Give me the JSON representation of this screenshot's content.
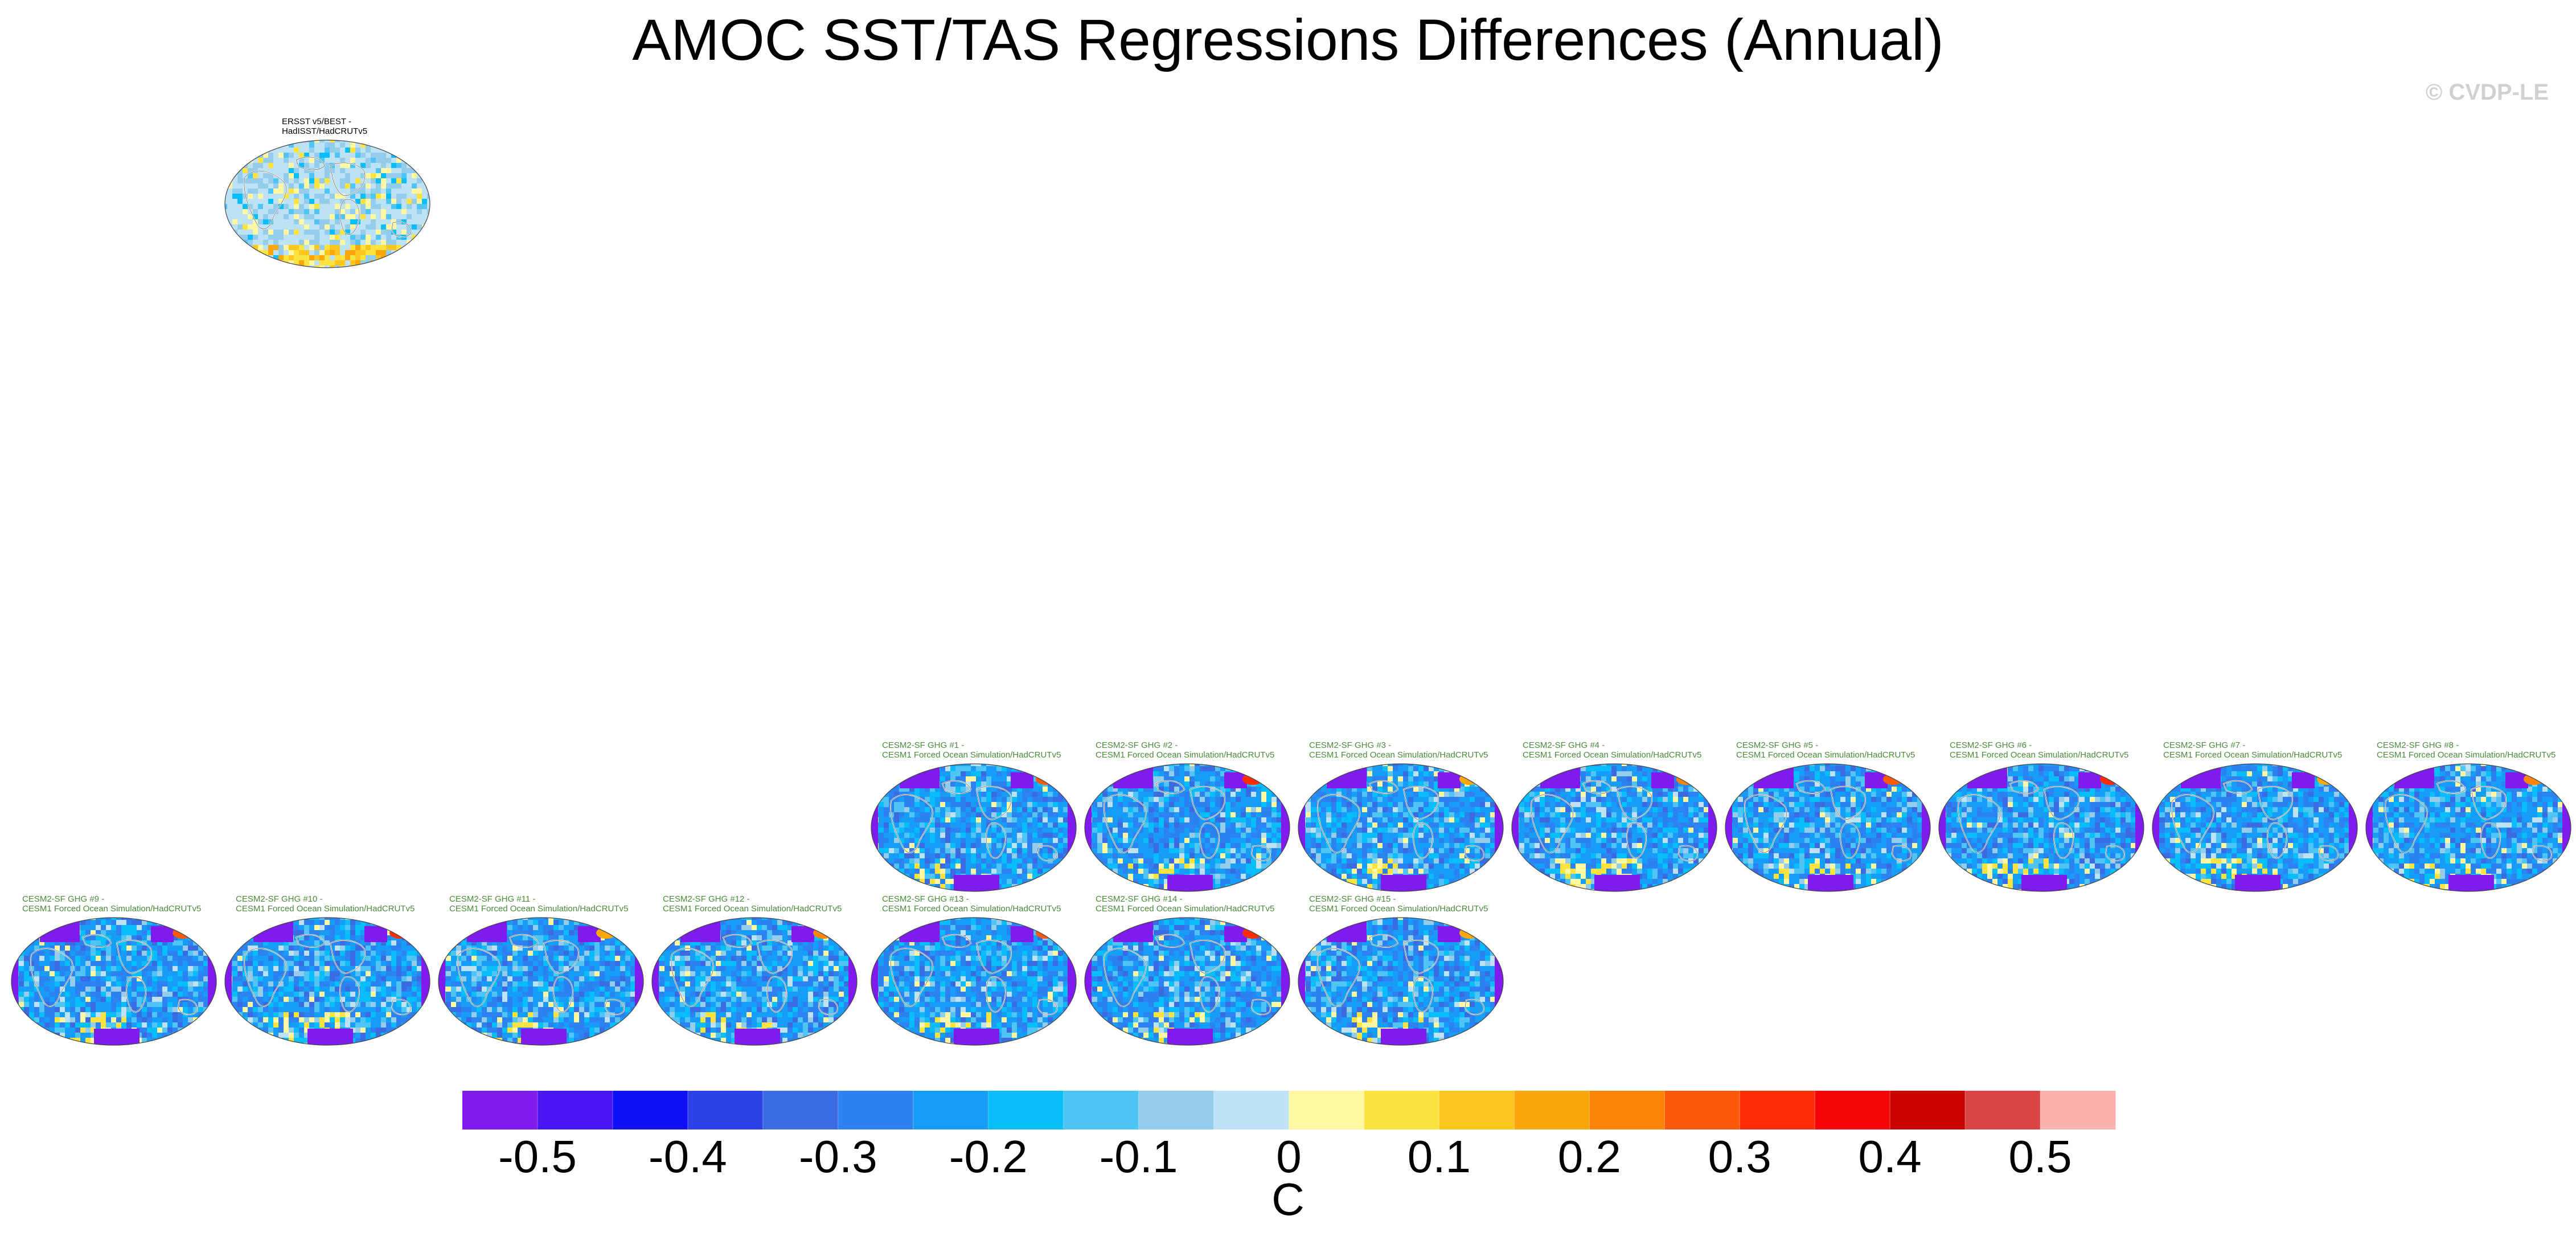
{
  "title": "AMOC SST/TAS Regressions Differences (Annual)",
  "credit": "© CVDP-LE",
  "colors": {
    "palette": [
      "#7f1ced",
      "#4716f2",
      "#0f0ff5",
      "#2d42e6",
      "#3b6be0",
      "#2b82f0",
      "#179df7",
      "#07bdfa",
      "#4ec5f5",
      "#94cceb",
      "#bde2f5",
      "#fff7a1",
      "#fde340",
      "#fcc61f",
      "#fba70c",
      "#fc850a",
      "#fb5b08",
      "#fe2d07",
      "#f50505",
      "#c90202",
      "#d94444",
      "#feb2b0"
    ]
  },
  "chart_data": {
    "type": "heatmap",
    "title": "AMOC SST/TAS Regressions Differences (Annual)",
    "colorbar": {
      "tick_values": [
        -0.5,
        -0.4,
        -0.3,
        -0.2,
        -0.1,
        0,
        0.1,
        0.2,
        0.3,
        0.4,
        0.5
      ],
      "tick_labels": [
        "-0.5",
        "-0.4",
        "-0.3",
        "-0.2",
        "-0.1",
        "0",
        "0.1",
        "0.2",
        "0.3",
        "0.4",
        "0.5"
      ],
      "levels": [
        -0.5,
        -0.45,
        -0.4,
        -0.35,
        -0.3,
        -0.25,
        -0.2,
        -0.15,
        -0.1,
        -0.05,
        0,
        0.05,
        0.1,
        0.15,
        0.2,
        0.25,
        0.3,
        0.35,
        0.4,
        0.45,
        0.5
      ],
      "units": "C"
    },
    "panels": [
      {
        "line1": "ERSST v5/BEST -",
        "line2": "HadISST/HadCRUTv5",
        "kind": "obs"
      },
      {
        "line1": "CESM2-SF GHG #1 -",
        "line2": "CESM1 Forced Ocean Simulation/HadCRUTv5",
        "kind": "model"
      },
      {
        "line1": "CESM2-SF GHG #2 -",
        "line2": "CESM1 Forced Ocean Simulation/HadCRUTv5",
        "kind": "model"
      },
      {
        "line1": "CESM2-SF GHG #3 -",
        "line2": "CESM1 Forced Ocean Simulation/HadCRUTv5",
        "kind": "model"
      },
      {
        "line1": "CESM2-SF GHG #4 -",
        "line2": "CESM1 Forced Ocean Simulation/HadCRUTv5",
        "kind": "model"
      },
      {
        "line1": "CESM2-SF GHG #5 -",
        "line2": "CESM1 Forced Ocean Simulation/HadCRUTv5",
        "kind": "model"
      },
      {
        "line1": "CESM2-SF GHG #6 -",
        "line2": "CESM1 Forced Ocean Simulation/HadCRUTv5",
        "kind": "model"
      },
      {
        "line1": "CESM2-SF GHG #7 -",
        "line2": "CESM1 Forced Ocean Simulation/HadCRUTv5",
        "kind": "model"
      },
      {
        "line1": "CESM2-SF GHG #8 -",
        "line2": "CESM1 Forced Ocean Simulation/HadCRUTv5",
        "kind": "model"
      },
      {
        "line1": "CESM2-SF GHG #9 -",
        "line2": "CESM1 Forced Ocean Simulation/HadCRUTv5",
        "kind": "model"
      },
      {
        "line1": "CESM2-SF GHG #10 -",
        "line2": "CESM1 Forced Ocean Simulation/HadCRUTv5",
        "kind": "model"
      },
      {
        "line1": "CESM2-SF GHG #11 -",
        "line2": "CESM1 Forced Ocean Simulation/HadCRUTv5",
        "kind": "model"
      },
      {
        "line1": "CESM2-SF GHG #12 -",
        "line2": "CESM1 Forced Ocean Simulation/HadCRUTv5",
        "kind": "model"
      },
      {
        "line1": "CESM2-SF GHG #13 -",
        "line2": "CESM1 Forced Ocean Simulation/HadCRUTv5",
        "kind": "model"
      },
      {
        "line1": "CESM2-SF GHG #14 -",
        "line2": "CESM1 Forced Ocean Simulation/HadCRUTv5",
        "kind": "model"
      },
      {
        "line1": "CESM2-SF GHG #15 -",
        "line2": "CESM1 Forced Ocean Simulation/HadCRUTv5",
        "kind": "model"
      }
    ]
  }
}
